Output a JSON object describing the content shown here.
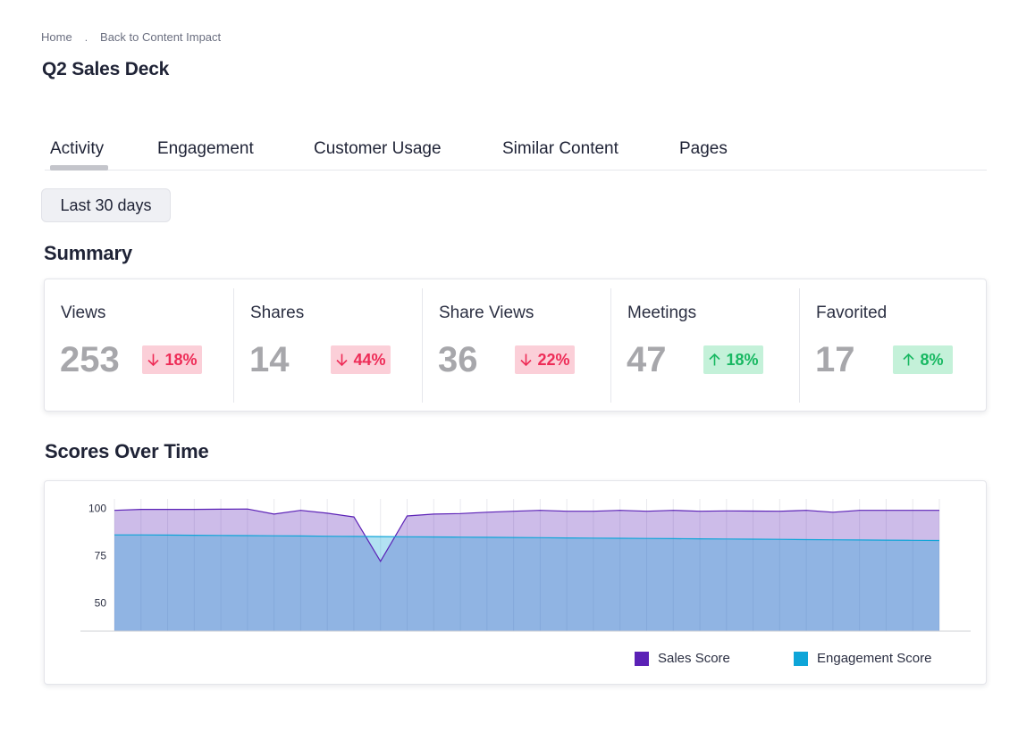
{
  "breadcrumb": {
    "home": "Home",
    "separator": ".",
    "back": "Back to Content Impact"
  },
  "page": {
    "title": "Q2 Sales Deck"
  },
  "tabs": [
    {
      "label": "Activity",
      "active": true
    },
    {
      "label": "Engagement",
      "active": false
    },
    {
      "label": "Customer Usage",
      "active": false
    },
    {
      "label": "Similar Content",
      "active": false
    },
    {
      "label": "Pages",
      "active": false
    }
  ],
  "filter": {
    "date_range": "Last 30 days"
  },
  "summary": {
    "title": "Summary",
    "metrics": [
      {
        "label": "Views",
        "value": "253",
        "change": "18%",
        "direction": "down"
      },
      {
        "label": "Shares",
        "value": "14",
        "change": "44%",
        "direction": "down"
      },
      {
        "label": "Share Views",
        "value": "36",
        "change": "22%",
        "direction": "down"
      },
      {
        "label": "Meetings",
        "value": "47",
        "change": "18%",
        "direction": "up"
      },
      {
        "label": "Favorited",
        "value": "17",
        "change": "8%",
        "direction": "up"
      }
    ]
  },
  "scores": {
    "title": "Scores Over Time"
  },
  "colors": {
    "sales_score": "#5b21b6",
    "engagement_score": "#0ea5d8",
    "down": "#ee2c57",
    "up": "#18b862"
  },
  "chart_data": {
    "type": "area",
    "y_ticks": [
      100,
      75,
      50
    ],
    "ylim": [
      35,
      105
    ],
    "grid": true,
    "legend_position": "bottom-right",
    "series": [
      {
        "name": "Sales Score",
        "color": "#5b21b6",
        "values": [
          99,
          99.5,
          99.5,
          99.5,
          99.6,
          99.7,
          97,
          99,
          97.5,
          95.5,
          72,
          96,
          97,
          97.3,
          98,
          98.5,
          99,
          98.5,
          98.5,
          99,
          98.5,
          99,
          98.5,
          98.7,
          98.6,
          98.5,
          99,
          98,
          99,
          99,
          99,
          99
        ]
      },
      {
        "name": "Engagement Score",
        "color": "#0ea5d8",
        "values": [
          86,
          86,
          85.9,
          85.8,
          85.7,
          85.6,
          85.5,
          85.4,
          85.3,
          85.2,
          85.1,
          85,
          84.9,
          84.8,
          84.7,
          84.6,
          84.5,
          84.4,
          84.3,
          84.2,
          84.1,
          84,
          83.9,
          83.8,
          83.7,
          83.6,
          83.5,
          83.4,
          83.3,
          83.2,
          83.1,
          83
        ]
      }
    ]
  }
}
